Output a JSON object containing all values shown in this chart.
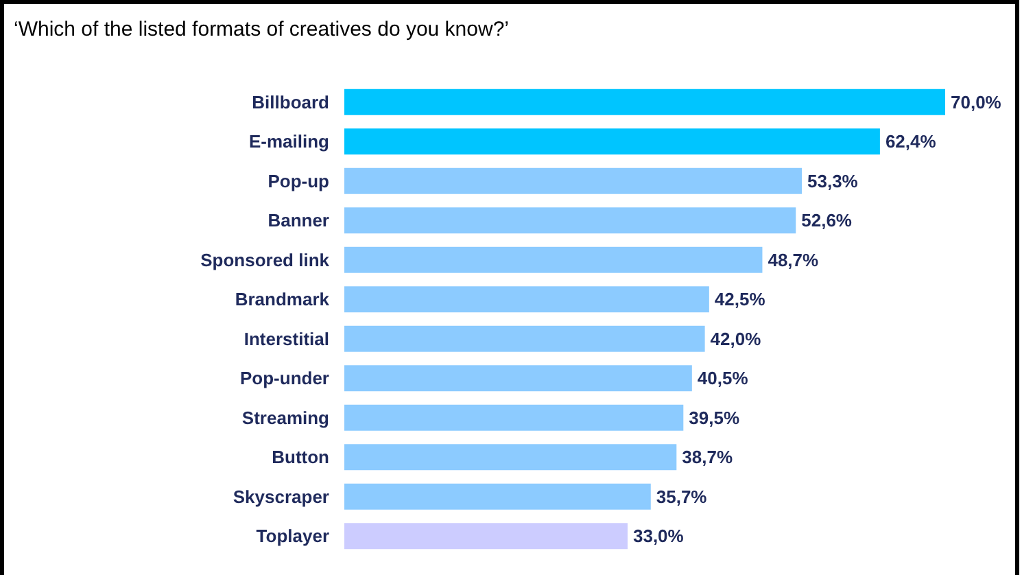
{
  "chart_data": {
    "type": "bar",
    "orientation": "horizontal",
    "title": "‘Which of the listed formats of  creatives do you know?’",
    "categories": [
      "Billboard",
      "E-mailing",
      "Pop-up",
      "Banner",
      "Sponsored link",
      "Brandmark",
      "Interstitial",
      "Pop-under",
      "Streaming",
      "Button",
      "Skyscraper",
      "Toplayer"
    ],
    "values": [
      70.0,
      62.4,
      53.3,
      52.6,
      48.7,
      42.5,
      42.0,
      40.5,
      39.5,
      38.7,
      35.7,
      33.0
    ],
    "colors": [
      "#00c5ff",
      "#00c5ff",
      "#8ccbff",
      "#8ccbff",
      "#8ccbff",
      "#8ccbff",
      "#8ccbff",
      "#8ccbff",
      "#8ccbff",
      "#8ccbff",
      "#8ccbff",
      "#ccccff"
    ],
    "value_labels": [
      "70,0%",
      "62,4%",
      "53,3%",
      "52,6%",
      "48,7%",
      "42,5%",
      "42,0%",
      "40,5%",
      "39,5%",
      "38,7%",
      "35,7%",
      "33,0%"
    ],
    "grid": false
  }
}
